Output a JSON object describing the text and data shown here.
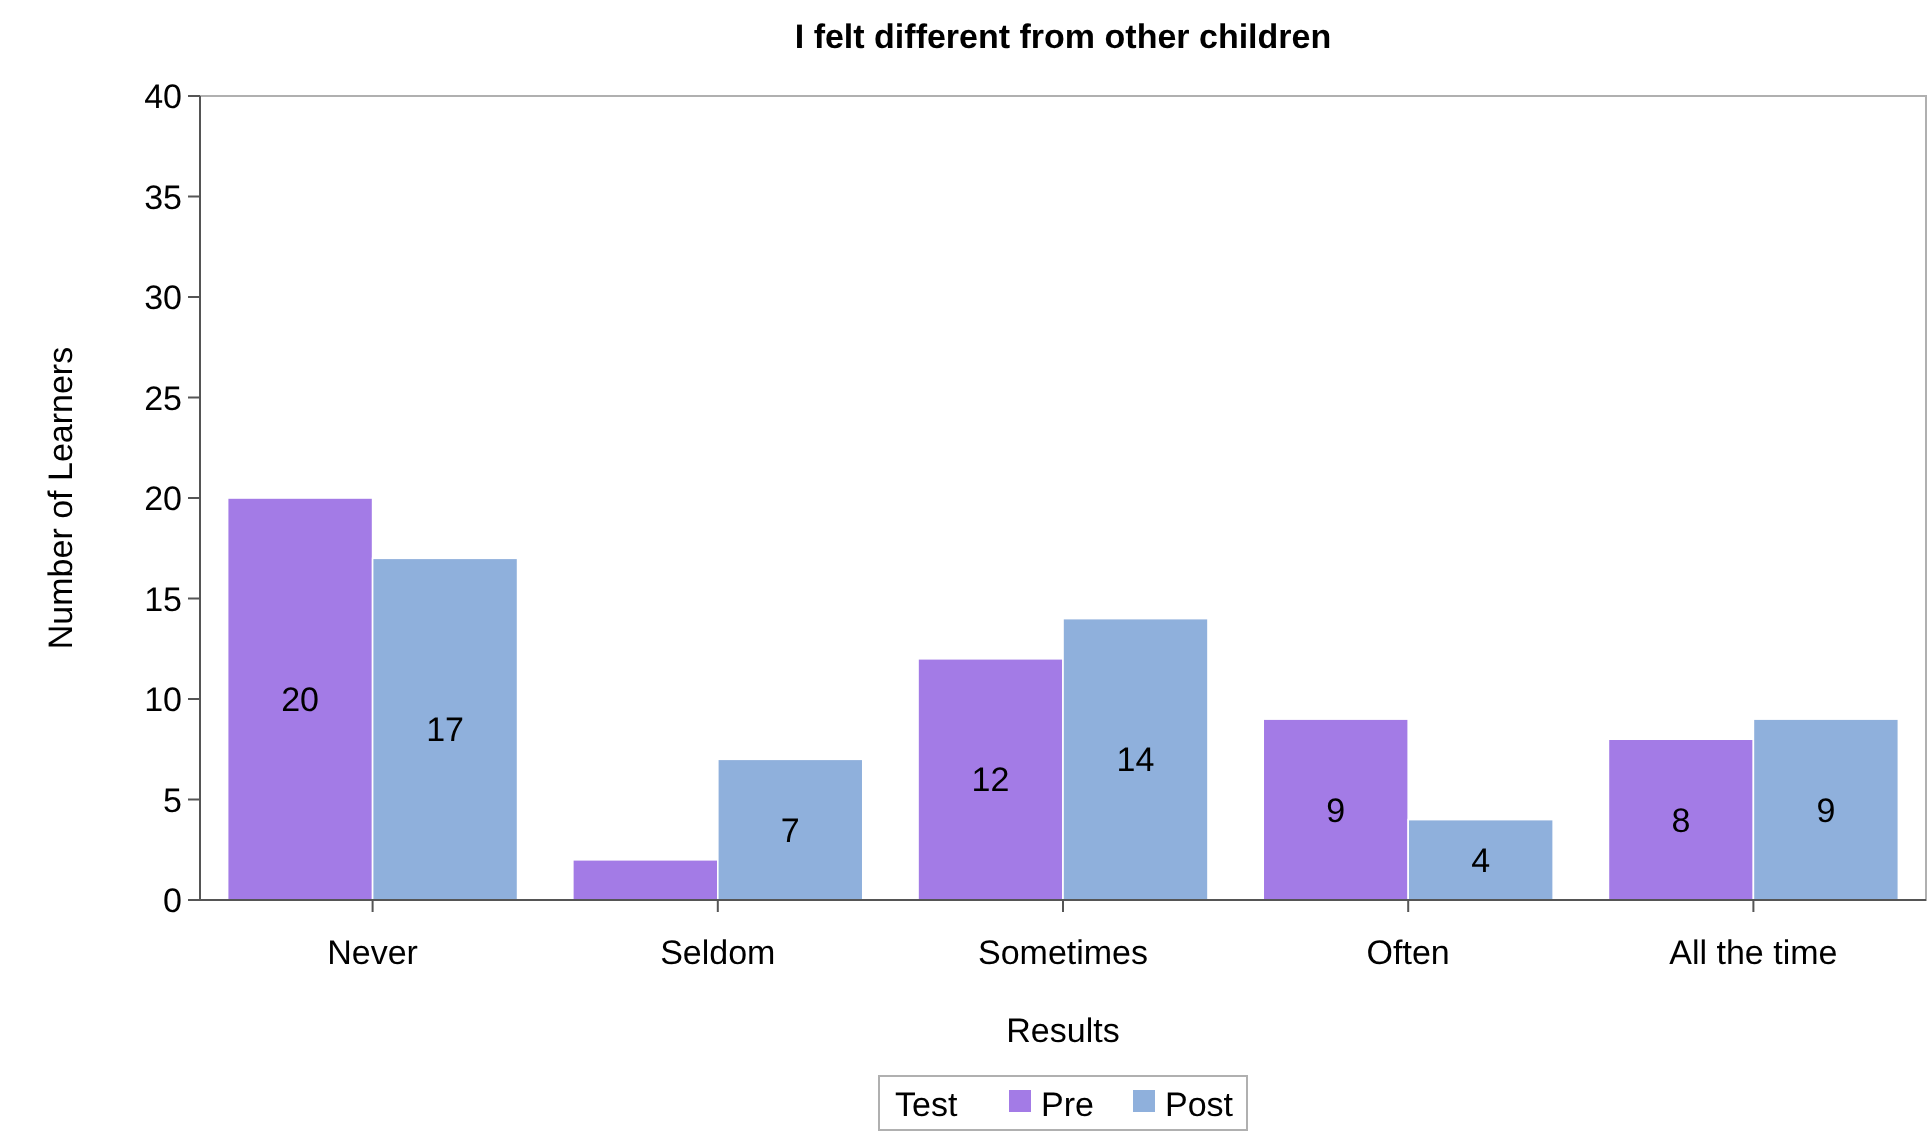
{
  "chart_data": {
    "type": "bar",
    "title": "I felt different from other children",
    "xlabel": "Results",
    "ylabel": "Number of Learners",
    "legend_title": "Test",
    "categories": [
      "Never",
      "Seldom",
      "Sometimes",
      "Often",
      "All the time"
    ],
    "series": [
      {
        "name": "Pre",
        "color": "#a37be6",
        "values": [
          20,
          2,
          12,
          9,
          8
        ],
        "value_labels": [
          "20",
          null,
          "12",
          "9",
          "8"
        ]
      },
      {
        "name": "Post",
        "color": "#8fb0dc",
        "values": [
          17,
          7,
          14,
          4,
          9
        ],
        "value_labels": [
          "17",
          "7",
          "14",
          "4",
          "9"
        ]
      }
    ],
    "ylim": [
      0,
      40
    ],
    "yticks": [
      0,
      5,
      10,
      15,
      20,
      25,
      30,
      35,
      40
    ],
    "grid": false,
    "legend": "bottom"
  }
}
